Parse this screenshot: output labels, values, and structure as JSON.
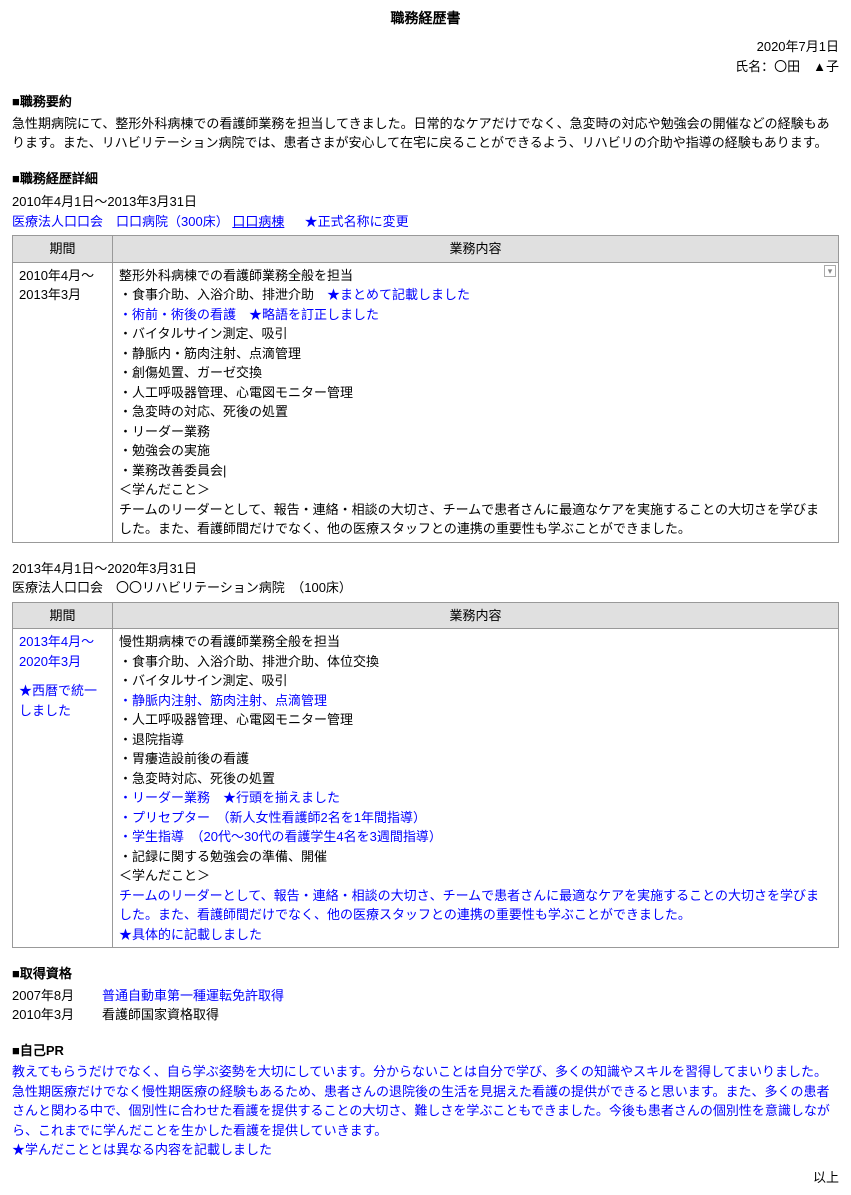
{
  "title": "職務経歴書",
  "date": "2020年7月1日",
  "name_label": "氏名：〇田　▲子",
  "sections": {
    "summary_heading": "■職務要約",
    "summary_text": "急性期病院にて、整形外科病棟での看護師業務を担当してきました。日常的なケアだけでなく、急変時の対応や勉強会の開催などの経験もあります。また、リハビリテーション病院では、患者さまが安心して在宅に戻ることができるよう、リハビリの介助や指導の経験もあります。",
    "detail_heading": "■職務経歴詳細",
    "qualifications_heading": "■取得資格",
    "selfpr_heading": "■自己PR"
  },
  "job1": {
    "period_line": "2010年4月1日～2013年3月31日",
    "org_line_prefix": "医療法人口口会　口口病院（300床）",
    "org_line_link": "口口病棟",
    "org_line_note": "★正式名称に変更",
    "table_headers": {
      "period": "期間",
      "content": "業務内容"
    },
    "period_cell": {
      "l1": "2010年4月～",
      "l2": "2013年3月"
    },
    "content_heading": "整形外科病棟での看護師業務全般を担当",
    "bullets": [
      {
        "text": "・食事介助、入浴介助、排泄介助",
        "note": "★まとめて記載しました",
        "blue": false
      },
      {
        "text": "・術前・術後の看護",
        "note": "★略語を訂正しました",
        "blue": true
      },
      {
        "text": "・バイタルサイン測定、吸引",
        "note": "",
        "blue": false
      },
      {
        "text": "・静脈内・筋肉注射、点滴管理",
        "note": "",
        "blue": false
      },
      {
        "text": "・創傷処置、ガーゼ交換",
        "note": "",
        "blue": false
      },
      {
        "text": "・人工呼吸器管理、心電図モニター管理",
        "note": "",
        "blue": false
      },
      {
        "text": "・急変時の対応、死後の処置",
        "note": "",
        "blue": false
      },
      {
        "text": "・リーダー業務",
        "note": "",
        "blue": false
      },
      {
        "text": "・勉強会の実施",
        "note": "",
        "blue": false
      },
      {
        "text": "・業務改善委員会|",
        "note": "",
        "blue": false
      }
    ],
    "learned_heading": "＜学んだこと＞",
    "learned_text": "チームのリーダーとして、報告・連絡・相談の大切さ、チームで患者さんに最適なケアを実施することの大切さを学びました。また、看護師間だけでなく、他の医療スタッフとの連携の重要性も学ぶことができました。"
  },
  "job2": {
    "period_line": "2013年4月1日～2020年3月31日",
    "org_line": "医療法人口口会　〇〇リハビリテーション病院　（100床）",
    "table_headers": {
      "period": "期間",
      "content": "業務内容"
    },
    "period_cell": {
      "l1": "2013年4月～",
      "l2": "2020年3月",
      "note1": "★西暦で統一",
      "note2": "しました"
    },
    "content_heading": "慢性期病棟での看護師業務全般を担当",
    "bullets": [
      {
        "text": "・食事介助、入浴介助、排泄介助、体位交換",
        "note": "",
        "blue": false
      },
      {
        "text": "・バイタルサイン測定、吸引",
        "note": "",
        "blue": false
      },
      {
        "text": "・静脈内注射、筋肉注射、点滴管理",
        "note": "",
        "blue": true
      },
      {
        "text": "・人工呼吸器管理、心電図モニター管理",
        "note": "",
        "blue": false
      },
      {
        "text": "・退院指導",
        "note": "",
        "blue": false
      },
      {
        "text": "・胃瘻造設前後の看護",
        "note": "",
        "blue": false
      },
      {
        "text": "・急変時対応、死後の処置",
        "note": "",
        "blue": false
      },
      {
        "text": "・リーダー業務",
        "note": "★行頭を揃えました",
        "blue": true
      },
      {
        "text": "・プリセプター　（新人女性看護師2名を1年間指導）",
        "note": "",
        "blue": true
      },
      {
        "text": "・学生指導　（20代～30代の看護学生4名を3週間指導）",
        "note": "",
        "blue": true
      },
      {
        "text": "・記録に関する勉強会の準備、開催",
        "note": "",
        "blue": false
      }
    ],
    "learned_heading": "＜学んだこと＞",
    "learned_text1": "チームのリーダーとして、報告・連絡・相談の大切さ、チームで患者さんに最適なケアを実施することの大切さを学びました。また、看護師間だけでなく、他の医療スタッフとの連携の重要性も学ぶことができました。",
    "learned_note": "★具体的に記載しました"
  },
  "qualifications": [
    {
      "date": "2007年8月",
      "text": "普通自動車第一種運転免許取得",
      "blue": true
    },
    {
      "date": "2010年3月",
      "text": "看護師国家資格取得",
      "blue": false
    }
  ],
  "selfpr": {
    "line1": "教えてもらうだけでなく、自ら学ぶ姿勢を大切にしています。分からないことは自分で学び、多くの知識やスキルを習得してまいりました。",
    "line2": "急性期医療だけでなく慢性期医療の経験もあるため、患者さんの退院後の生活を見据えた看護の提供ができると思います。また、多くの患者さんと関わる中で、個別性に合わせた看護を提供することの大切さ、難しさを学ぶこともできました。今後も患者さんの個別性を意識しながら、これまでに学んだことを生かした看護を提供していきます。",
    "note": "★学んだこととは異なる内容を記載しました"
  },
  "footer": "以上"
}
